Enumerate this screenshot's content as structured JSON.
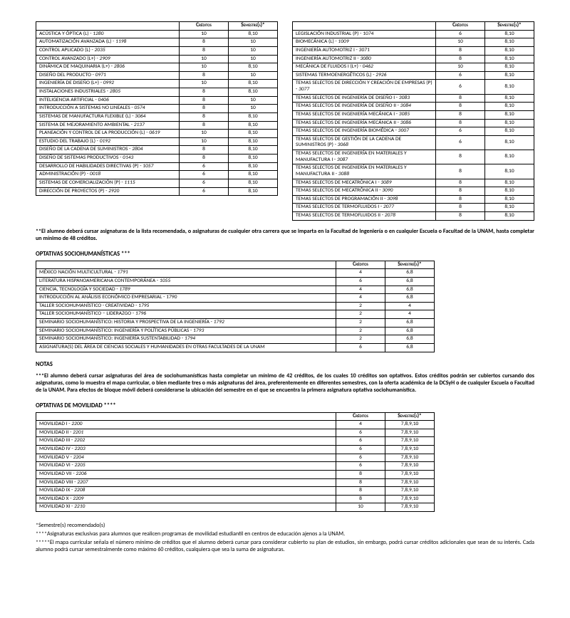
{
  "headers": {
    "credits": "Créditos",
    "sem": "Semestre(s)*"
  },
  "left_table": [
    {
      "name": "ACÚSTICA Y ÓPTICA (L)",
      "code": "1280",
      "credits": "10",
      "sem": "8,10"
    },
    {
      "name": "AUTOMATIZACIÓN AVANZADA (L)",
      "code": "1198",
      "credits": "8",
      "sem": "10"
    },
    {
      "name": "CONTROL APLICADO (L)",
      "code": "2035",
      "credits": "8",
      "sem": "10"
    },
    {
      "name": "CONTROL AVANZADO (L+)",
      "code": "2909",
      "credits": "10",
      "sem": "10"
    },
    {
      "name": "DINÁMICA DE MAQUINARIA (L+)",
      "code": "2806",
      "credits": "10",
      "sem": "8,10"
    },
    {
      "name": "DISEÑO DEL PRODUCTO",
      "code": "0971",
      "credits": "8",
      "sem": "10"
    },
    {
      "name": "INGENIERÍA DE DISEÑO (L+)",
      "code": "0992",
      "credits": "10",
      "sem": "8,10"
    },
    {
      "name": "INSTALACIONES INDUSTRIALES",
      "code": "2805",
      "credits": "8",
      "sem": "8,10"
    },
    {
      "name": "INTELIGENCIA ARTIFICIAL",
      "code": "0406",
      "credits": "8",
      "sem": "10"
    },
    {
      "name": "INTRODUCCIÓN A SISTEMAS NO LINEALES",
      "code": "0574",
      "credits": "8",
      "sem": "10"
    },
    {
      "name": "SISTEMAS DE MANUFACTURA FLEXIBLE (L)",
      "code": "3064",
      "credits": "8",
      "sem": "8,10"
    },
    {
      "name": "SISTEMA DE MEJORAMIENTO AMBIENTAL",
      "code": "2137",
      "credits": "8",
      "sem": "8,10"
    },
    {
      "name": "PLANEACIÓN Y CONTROL DE LA PRODUCCIÓN (L)",
      "code": "0619",
      "credits": "10",
      "sem": "8,10"
    },
    {
      "name": "ESTUDIO DEL TRABAJO (L)",
      "code": "0192",
      "credits": "10",
      "sem": "8,10"
    },
    {
      "name": "DISEÑO DE LA CADENA DE SUMINISTROS",
      "code": "2804",
      "credits": "8",
      "sem": "8,10"
    },
    {
      "name": "DISEÑO DE SISTEMAS PRODUCTIVOS",
      "code": "0143",
      "credits": "8",
      "sem": "8,10"
    },
    {
      "name": "DESARROLLO DE HABILIDADES DIRECTIVAS (P)",
      "code": "1057",
      "credits": "6",
      "sem": "8,10"
    },
    {
      "name": "ADMINISTRACIÓN (P)",
      "code": "0018",
      "credits": "6",
      "sem": "8,10"
    },
    {
      "name": "SISTEMAS DE COMERCIALIZACIÓN (P)",
      "code": "1115",
      "credits": "6",
      "sem": "8,10"
    },
    {
      "name": "DIRECCIÓN DE PROYECTOS (P)",
      "code": "2920",
      "credits": "6",
      "sem": "8,10"
    }
  ],
  "right_table": [
    {
      "name": "LEGISLACIÓN INDUSTRIAL (P)",
      "code": "1074",
      "credits": "6",
      "sem": "8,10"
    },
    {
      "name": "BIOMECÁNICA (L)",
      "code": "1009",
      "credits": "10",
      "sem": "8,10"
    },
    {
      "name": "INGENIERÍA AUTOMOTRIZ I",
      "code": "3071",
      "credits": "8",
      "sem": "8,10"
    },
    {
      "name": "INGENIERÍA AUTOMOTRIZ II",
      "code": "3080",
      "credits": "8",
      "sem": "8,10"
    },
    {
      "name": "MECÁNICA DE FLUIDOS I (L+)",
      "code": "0462",
      "credits": "10",
      "sem": "8,10"
    },
    {
      "name": "SISTEMAS TERMOENERGÉTICOS (L)",
      "code": "2926",
      "credits": "6",
      "sem": "8,10"
    },
    {
      "name": "TEMAS SELECTOS DE DIRECCIÓN Y CREACIÓN DE EMPRESAS (P)",
      "code": "3077",
      "credits": "6",
      "sem": "8,10"
    },
    {
      "name": "TEMAS SELECTOS DE INGENIERÍA DE DISEÑO I",
      "code": "3083",
      "credits": "8",
      "sem": "8,10"
    },
    {
      "name": "TEMAS SELECTOS DE INGENIERÍA DE DISEÑO II",
      "code": "3084",
      "credits": "8",
      "sem": "8,10"
    },
    {
      "name": "TEMAS SELECTOS DE INGENIERÍA MECÁNICA I",
      "code": "3085",
      "credits": "8",
      "sem": "8,10"
    },
    {
      "name": "TEMAS SELECTOS DE INGENIERÍA MECÁNICA II",
      "code": "3086",
      "credits": "8",
      "sem": "8,10"
    },
    {
      "name": "TEMAS SELECTOS DE INGENIERÍA BIOMÉDICA",
      "code": "3007",
      "credits": "6",
      "sem": "8,10"
    },
    {
      "name": "TEMAS SELECTOS DE GESTIÓN DE LA CADENA DE SUMINISTROS (P)",
      "code": "3068",
      "credits": "6",
      "sem": "8,10"
    },
    {
      "name": "TEMAS SELECTOS DE INGENIERÍA EN MATERIALES Y MANUFACTURA I",
      "code": "3087",
      "credits": "8",
      "sem": "8,10"
    },
    {
      "name": "TEMAS SELECTOS DE INGENIERÍA EN MATERIALES Y MANUFACTURA II",
      "code": "3088",
      "credits": "8",
      "sem": "8,10"
    },
    {
      "name": "TEMAS SELECTOS DE MECATRÓNICA I",
      "code": "3089",
      "credits": "8",
      "sem": "8,10"
    },
    {
      "name": "TEMAS SELECTOS DE MECATRÓNICA II",
      "code": "3090",
      "credits": "8",
      "sem": "8,10"
    },
    {
      "name": "TEMAS SELECTOS DE PROGRAMACIÓN II",
      "code": "3098",
      "credits": "8",
      "sem": "8,10"
    },
    {
      "name": "TEMAS SELECTOS DE TERMOFLUIDOS I",
      "code": "2077",
      "credits": "8",
      "sem": "8,10"
    },
    {
      "name": "TEMAS SELECTOS DE TERMOFLUIDOS II",
      "code": "2078",
      "credits": "8",
      "sem": "8,10"
    }
  ],
  "note_top": "**El alumno deberá cursar asignaturas de la lista recomendada, o asignaturas de cualquier otra carrera que se imparta en la Facultad de Ingeniería o en cualquier Escuela o Facultad de la UNAM, hasta completar un mínimo de 48 créditos.",
  "section_socio_title": "OPTATIVAS SOCIOHUMANÍSTICAS ***",
  "socio_table": [
    {
      "name": "MÉXICO NACIÓN MULTICULTURAL",
      "code": "1791",
      "credits": "4",
      "sem": "6,8"
    },
    {
      "name": "LITERATURA HISPANOAMERICANA CONTEMPORÁNEA",
      "code": "1055",
      "credits": "6",
      "sem": "6,8"
    },
    {
      "name": "CIENCIA, TECNOLOGÍA Y SOCIEDAD",
      "code": "1789",
      "credits": "4",
      "sem": "6,8"
    },
    {
      "name": "INTRODUCCIÓN AL ANÁLISIS ECONÓMICO EMPRESARIAL",
      "code": "1790",
      "credits": "4",
      "sem": "6,8"
    },
    {
      "name": "TALLER SOCIOHUMANÍSTICO - CREATIVIDAD",
      "code": "1795",
      "credits": "2",
      "sem": "4"
    },
    {
      "name": "TALLER SOCIOHUMANÍSTICO – LIDERAZGO",
      "code": "1796",
      "credits": "2",
      "sem": "4"
    },
    {
      "name": "SEMINARIO SOCIOHUMANÍSTICO: HISTORIA Y PROSPECTIVA DE LA INGENIERÍA",
      "code": "1792",
      "credits": "2",
      "sem": "6,8"
    },
    {
      "name": "SEMINARIO SOCIOHUMANÍSTICO: INGENIERÍA Y POLÍTICAS PÚBLICAS",
      "code": "1793",
      "credits": "2",
      "sem": "6,8"
    },
    {
      "name": "SEMINARIO SOCIOHUMANÍSTICO: INGENIERÍA SUSTENTABILIDAD",
      "code": "1794",
      "credits": "2",
      "sem": "6,8"
    },
    {
      "name": "ASIGNATURA(S) DEL ÁREA DE CIENCIAS SOCIALES Y HUMANIDADES EN OTRAS FACULTADES DE LA UNAM",
      "code": "",
      "credits": "6",
      "sem": "6,8"
    }
  ],
  "notas_title": "NOTAS",
  "notas_text": "***El alumno deberá cursar asignaturas del área de sociohumanísticas hasta completar un mínimo de 42 créditos, de los cuales 10 créditos son optativos. Estos créditos podrán ser cubiertos cursando dos asignaturas, como lo muestra el mapa curricular, o bien mediante tres o más asignaturas del área, preferentemente en diferentes semestres, con la oferta académica de la DCSyH o de cualquier Escuela o Facultad de la UNAM. Para efectos de bloque móvil deberá considerarse la ubicación del semestre en el que se encuentra la primera asignatura optativa sociohumanística.",
  "section_movilidad_title": "OPTATIVAS DE MOVILIDAD ****",
  "movilidad_table": [
    {
      "name": "MOVILIDAD I",
      "code": "2200",
      "credits": "4",
      "sem": "7,8,9,10"
    },
    {
      "name": "MOVILIDAD II",
      "code": "2201",
      "credits": "6",
      "sem": "7,8,9,10"
    },
    {
      "name": "MOVILIDAD III",
      "code": "2202",
      "credits": "6",
      "sem": "7,8,9,10"
    },
    {
      "name": "MOVILIDAD IV",
      "code": "2203",
      "credits": "6",
      "sem": "7,8,9,10"
    },
    {
      "name": "MOVILIDAD V",
      "code": "2204",
      "credits": "6",
      "sem": "7,8,9,10"
    },
    {
      "name": "MOVILIDAD VI",
      "code": "2205",
      "credits": "6",
      "sem": "7,8,9,10"
    },
    {
      "name": "MOVILIDAD VII",
      "code": "2206",
      "credits": "8",
      "sem": "7,8,9,10"
    },
    {
      "name": "MOVILIDAD VIII",
      "code": "2207",
      "credits": "8",
      "sem": "7,8,9,10"
    },
    {
      "name": "MOVILIDAD IX",
      "code": "2208",
      "credits": "8",
      "sem": "7,8,9,10"
    },
    {
      "name": "MOVILIDAD X",
      "code": "2209",
      "credits": "8",
      "sem": "7,8,9,10"
    },
    {
      "name": "MOVILIDAD XI",
      "code": "2210",
      "credits": "10",
      "sem": "7,8,9,10"
    }
  ],
  "footer": {
    "l1": "*Semestre(s) recomendado(s)",
    "l2": "****Asignaturas exclusivas para alumnos que realicen programas de movilidad estudiantil en centros de educación ajenos a la UNAM.",
    "l3": "*****El mapa curricular señala el número mínimo de créditos que el alumno deberá cursar para considerar cubierto su plan de estudios, sin embargo, podrá cursar créditos adicionales que sean de su interés. Cada alumno podrá cursar semestralmente como máximo 60 créditos, cualquiera que sea la suma de asignaturas."
  }
}
